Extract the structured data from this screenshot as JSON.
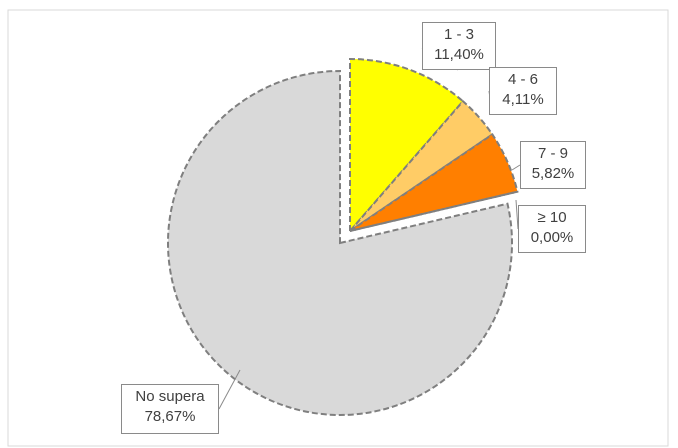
{
  "chart_data": {
    "type": "pie",
    "slices": [
      {
        "category": "1 - 3",
        "value": 11.4,
        "label": "11,40%",
        "color": "#ffff00",
        "exploded": true
      },
      {
        "category": "4 - 6",
        "value": 4.11,
        "label": "4,11%",
        "color": "#ffcc66",
        "exploded": true
      },
      {
        "category": "7 - 9",
        "value": 5.82,
        "label": "5,82%",
        "color": "#ff7f00",
        "exploded": true
      },
      {
        "category": "≥ 10",
        "value": 0.0,
        "label": "0,00%",
        "color": "#ff3300",
        "exploded": true
      },
      {
        "category": "No supera",
        "value": 78.67,
        "label": "78,67%",
        "color": "#d9d9d9",
        "exploded": false
      }
    ],
    "border_style": "dashed",
    "border_color": "#7f7f7f",
    "legend": "none"
  }
}
